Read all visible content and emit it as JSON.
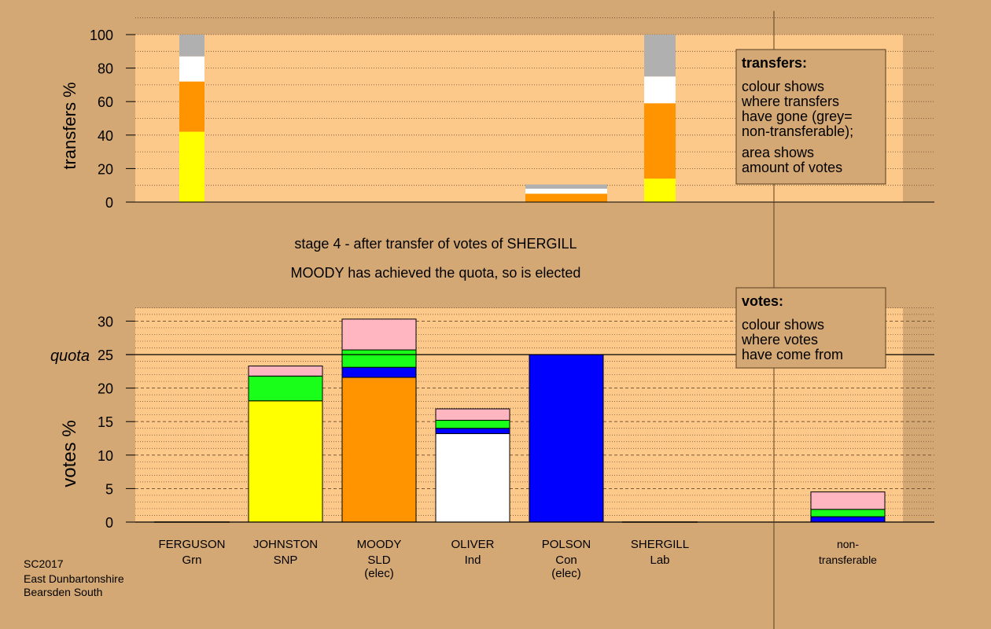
{
  "colors": {
    "background": "#d4a874",
    "panel": "#fcc98b",
    "grid": "#6b4a2a",
    "yellow": "#ffff00",
    "orange": "#ff9400",
    "white": "#ffffff",
    "grey": "#b0b0b0",
    "green": "#19ff19",
    "blue": "#0000ff",
    "pink": "#ffb6c1"
  },
  "stage_title": "stage 4 - after transfer of votes of SHERGILL",
  "stage_subtitle": "MOODY has achieved the quota, so is elected",
  "footer": {
    "line1": "SC2017",
    "line2": "East Dunbartonshire",
    "line3": "Bearsden South"
  },
  "candidates": [
    {
      "name": "FERGUSON",
      "party": "Grn",
      "note": ""
    },
    {
      "name": "JOHNSTON",
      "party": "SNP",
      "note": ""
    },
    {
      "name": "MOODY",
      "party": "SLD",
      "note": "(elec)"
    },
    {
      "name": "OLIVER",
      "party": "Ind",
      "note": ""
    },
    {
      "name": "POLSON",
      "party": "Con",
      "note": "(elec)"
    },
    {
      "name": "SHERGILL",
      "party": "Lab",
      "note": ""
    },
    {
      "name": "non-",
      "party": "transferable",
      "note": ""
    }
  ],
  "transfers_legend": {
    "title": "transfers:",
    "lines": [
      "colour shows",
      "where transfers",
      "have gone (grey=",
      "non-transferable);"
    ],
    "lines2": [
      "area shows",
      "amount of votes"
    ]
  },
  "votes_legend": {
    "title": "votes:",
    "lines": [
      "colour shows",
      "where votes",
      "have come from"
    ]
  },
  "chart_data": [
    {
      "type": "bar",
      "title": "transfers",
      "ylabel": "transfers %",
      "ylim": [
        0,
        100
      ],
      "yticks": [
        0,
        20,
        40,
        60,
        80,
        100
      ],
      "grid": true,
      "bars": [
        {
          "label": "col1",
          "segments": [
            {
              "color": "yellow",
              "value": 42
            },
            {
              "color": "orange",
              "value": 30
            },
            {
              "color": "white",
              "value": 15
            },
            {
              "color": "grey",
              "value": 13
            }
          ]
        },
        {
          "label": "col5",
          "segments": [
            {
              "color": "orange",
              "value": 5
            },
            {
              "color": "white",
              "value": 3
            },
            {
              "color": "grey",
              "value": 2.5
            }
          ]
        },
        {
          "label": "col6",
          "segments": [
            {
              "color": "yellow",
              "value": 14
            },
            {
              "color": "orange",
              "value": 45
            },
            {
              "color": "white",
              "value": 16
            },
            {
              "color": "grey",
              "value": 25
            }
          ]
        }
      ]
    },
    {
      "type": "bar",
      "title": "votes",
      "ylabel": "votes %",
      "ylim": [
        0,
        32
      ],
      "yticks": [
        0,
        5,
        10,
        15,
        20,
        25,
        30
      ],
      "quota": 25,
      "quota_label": "quota",
      "grid": true,
      "bars": [
        {
          "label": "FERGUSON",
          "segments": []
        },
        {
          "label": "JOHNSTON",
          "segments": [
            {
              "color": "yellow",
              "value": 18.1
            },
            {
              "color": "green",
              "value": 3.7
            },
            {
              "color": "pink",
              "value": 1.5
            }
          ]
        },
        {
          "label": "MOODY",
          "segments": [
            {
              "color": "orange",
              "value": 21.6
            },
            {
              "color": "blue",
              "value": 1.5
            },
            {
              "color": "green",
              "value": 2.6
            },
            {
              "color": "pink",
              "value": 4.6
            }
          ]
        },
        {
          "label": "OLIVER",
          "segments": [
            {
              "color": "white",
              "value": 13.2
            },
            {
              "color": "blue",
              "value": 0.8
            },
            {
              "color": "green",
              "value": 1.2
            },
            {
              "color": "pink",
              "value": 1.7
            }
          ]
        },
        {
          "label": "POLSON",
          "segments": [
            {
              "color": "blue",
              "value": 25
            }
          ]
        },
        {
          "label": "SHERGILL",
          "segments": []
        },
        {
          "label": "non-transferable",
          "segments": [
            {
              "color": "blue",
              "value": 0.8
            },
            {
              "color": "green",
              "value": 1.1
            },
            {
              "color": "pink",
              "value": 2.6
            }
          ]
        }
      ]
    }
  ]
}
